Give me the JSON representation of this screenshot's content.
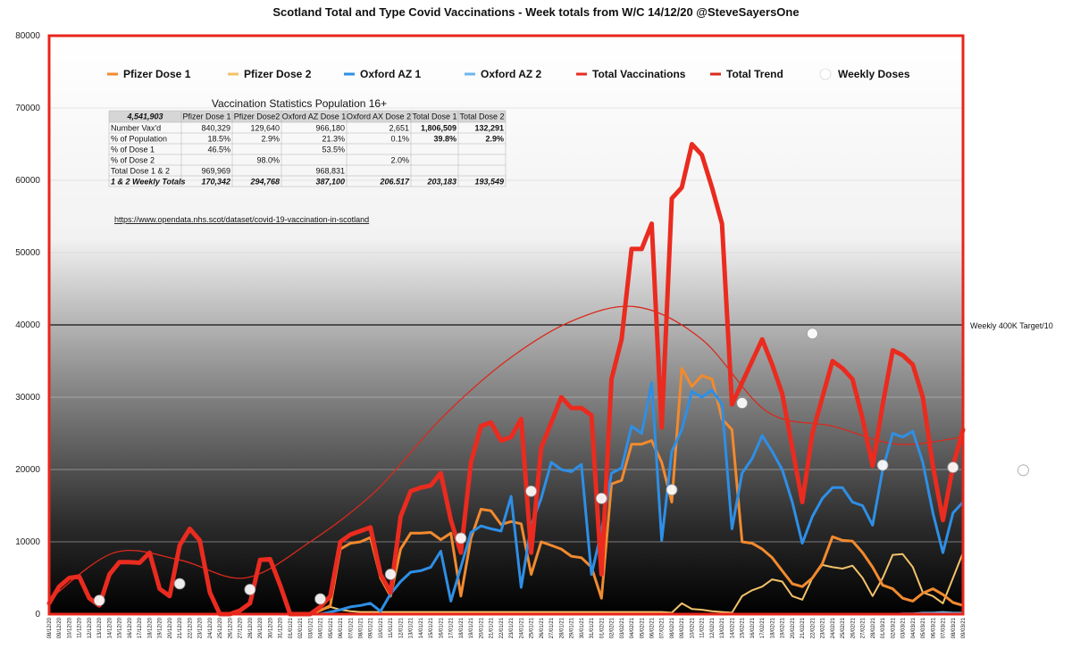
{
  "chart_data": {
    "type": "line",
    "title": "Scotland Total and Type Covid Vaccinations - Week totals from W/C 14/12/20  @SteveSayersOne",
    "ylim": [
      0,
      80000
    ],
    "yticks": [
      "0",
      "10000",
      "20000",
      "30000",
      "40000",
      "50000",
      "60000",
      "70000",
      "80000"
    ],
    "ytick_values": [
      0,
      10000,
      20000,
      30000,
      40000,
      50000,
      60000,
      70000,
      80000
    ],
    "x": [
      "08/12/20",
      "09/12/20",
      "10/12/20",
      "11/12/20",
      "12/12/20",
      "13/12/20",
      "14/12/20",
      "15/12/20",
      "16/12/20",
      "17/12/20",
      "18/12/20",
      "19/12/20",
      "20/12/20",
      "21/12/20",
      "22/12/20",
      "23/12/20",
      "24/12/20",
      "25/12/20",
      "26/12/20",
      "27/12/20",
      "28/12/20",
      "29/12/20",
      "30/12/20",
      "31/12/20",
      "01/01/21",
      "02/01/21",
      "03/01/21",
      "04/01/21",
      "05/01/21",
      "06/01/21",
      "07/01/21",
      "08/01/21",
      "09/01/21",
      "10/01/21",
      "11/01/21",
      "12/01/21",
      "13/01/21",
      "14/01/21",
      "15/01/21",
      "16/01/21",
      "17/01/21",
      "18/01/21",
      "19/01/21",
      "20/01/21",
      "21/01/21",
      "22/01/21",
      "23/01/21",
      "24/01/21",
      "25/01/21",
      "26/01/21",
      "27/01/21",
      "28/01/21",
      "29/01/21",
      "30/01/21",
      "31/01/21",
      "01/02/21",
      "02/02/21",
      "03/02/21",
      "04/02/21",
      "05/02/21",
      "06/02/21",
      "07/02/21",
      "08/02/21",
      "09/02/21",
      "10/02/21",
      "11/02/21",
      "12/02/21",
      "13/02/21",
      "14/02/21",
      "15/02/21",
      "16/02/21",
      "17/02/21",
      "18/02/21",
      "19/02/21",
      "20/02/21",
      "21/02/21",
      "22/02/21",
      "23/02/21",
      "24/02/21",
      "25/02/21",
      "26/02/21",
      "27/02/21",
      "28/02/21",
      "01/03/21",
      "02/03/21",
      "03/03/21",
      "04/03/21",
      "05/03/21",
      "06/03/21",
      "07/03/21",
      "08/03/21",
      "09/03/21"
    ],
    "series": [
      {
        "name": "Pfizer Dose 1",
        "color": "#f28a2e",
        "width": 3,
        "values": [
          1500,
          3800,
          5000,
          5200,
          2200,
          1200,
          5500,
          7200,
          7200,
          7100,
          8500,
          3500,
          2500,
          9500,
          11800,
          10200,
          3000,
          0,
          0,
          500,
          1500,
          7500,
          7600,
          4000,
          0,
          0,
          0,
          500,
          1200,
          9000,
          9800,
          10000,
          10600,
          5000,
          2500,
          9000,
          11200,
          11200,
          11300,
          10300,
          11200,
          2500,
          10500,
          14500,
          14300,
          12400,
          12800,
          12500,
          5500,
          10000,
          9500,
          9000,
          8000,
          7800,
          6500,
          2200,
          18000,
          18500,
          23500,
          23500,
          24000,
          21000,
          15500,
          34000,
          31500,
          33000,
          32500,
          27000,
          25500,
          10000,
          9800,
          9000,
          7800,
          6000,
          4200,
          3800,
          5000,
          7000,
          10700,
          10200,
          10100,
          8500,
          6500,
          4000,
          3500,
          2200,
          1800,
          2900,
          3500,
          2700,
          1600,
          1200
        ]
      },
      {
        "name": "Pfizer Dose 2",
        "color": "#f3c26a",
        "width": 2,
        "values": [
          0,
          0,
          0,
          0,
          0,
          0,
          0,
          0,
          0,
          0,
          0,
          0,
          0,
          0,
          0,
          0,
          0,
          0,
          0,
          0,
          0,
          0,
          0,
          0,
          0,
          0,
          0,
          500,
          1000,
          600,
          400,
          300,
          300,
          300,
          300,
          300,
          300,
          300,
          300,
          300,
          300,
          300,
          300,
          300,
          300,
          300,
          300,
          300,
          300,
          300,
          300,
          300,
          300,
          300,
          300,
          300,
          300,
          300,
          300,
          300,
          300,
          300,
          200,
          1500,
          700,
          600,
          400,
          300,
          200,
          2500,
          3300,
          3800,
          4800,
          4500,
          2500,
          2000,
          5000,
          6800,
          6500,
          6300,
          6700,
          5000,
          2500,
          5000,
          8200,
          8300,
          6500,
          3000,
          2500,
          1500,
          5000,
          8500
        ]
      },
      {
        "name": "Oxford AZ 1",
        "color": "#2e8fe6",
        "width": 3,
        "values": [
          0,
          0,
          0,
          0,
          0,
          0,
          0,
          0,
          0,
          0,
          0,
          0,
          0,
          0,
          0,
          0,
          0,
          0,
          0,
          0,
          0,
          0,
          0,
          0,
          0,
          0,
          0,
          0,
          300,
          600,
          1000,
          1200,
          1500,
          400,
          2800,
          4500,
          5800,
          6000,
          6500,
          8700,
          1800,
          6500,
          11300,
          12200,
          11800,
          11500,
          16300,
          3700,
          12300,
          16000,
          21000,
          20000,
          19700,
          20700,
          5500,
          11500,
          19500,
          20200,
          26000,
          25000,
          32000,
          10200,
          22500,
          25500,
          30800,
          30000,
          31000,
          29000,
          11800,
          19500,
          21500,
          24700,
          22500,
          20000,
          15500,
          9800,
          13500,
          16000,
          17500,
          17500,
          15500,
          15000,
          12300,
          20000,
          25000,
          24500,
          25300,
          21000,
          14000,
          8500,
          14000,
          15500
        ]
      },
      {
        "name": "Oxford AZ 2",
        "color": "#6ab8ee",
        "width": 2,
        "values": [
          0,
          0,
          0,
          0,
          0,
          0,
          0,
          0,
          0,
          0,
          0,
          0,
          0,
          0,
          0,
          0,
          0,
          0,
          0,
          0,
          0,
          0,
          0,
          0,
          0,
          0,
          0,
          0,
          0,
          0,
          0,
          0,
          0,
          0,
          0,
          0,
          0,
          0,
          0,
          0,
          0,
          0,
          0,
          0,
          0,
          0,
          0,
          0,
          0,
          0,
          0,
          0,
          0,
          0,
          0,
          0,
          0,
          0,
          0,
          0,
          0,
          0,
          0,
          0,
          0,
          0,
          0,
          0,
          0,
          0,
          0,
          0,
          0,
          0,
          0,
          0,
          0,
          0,
          0,
          0,
          0,
          0,
          0,
          0,
          0,
          100,
          100,
          200,
          200,
          300,
          200,
          200
        ]
      },
      {
        "name": "Total Vaccinations",
        "color": "#ea2b1f",
        "width": 5,
        "values": [
          1500,
          3800,
          5000,
          5200,
          2200,
          1200,
          5500,
          7200,
          7200,
          7100,
          8500,
          3500,
          2500,
          9500,
          11800,
          10200,
          3000,
          0,
          0,
          500,
          1500,
          7500,
          7600,
          4000,
          0,
          0,
          0,
          1000,
          2500,
          10000,
          11000,
          11500,
          12000,
          5500,
          3000,
          13500,
          17000,
          17500,
          17800,
          19500,
          13000,
          8500,
          21000,
          26000,
          26500,
          24000,
          24500,
          27000,
          8500,
          23000,
          26500,
          30000,
          28500,
          28500,
          27500,
          5500,
          32500,
          38000,
          50500,
          50500,
          54000,
          25800,
          57500,
          59000,
          65000,
          63500,
          59000,
          54000,
          29000,
          32000,
          35000,
          38000,
          34500,
          30500,
          23000,
          15500,
          25000,
          30000,
          35000,
          34000,
          32500,
          27000,
          20500,
          29000,
          36500,
          35800,
          34500,
          30000,
          20500,
          13000,
          20500,
          25500
        ]
      }
    ],
    "trend": {
      "name": "Total Trend",
      "color": "#d9291c",
      "values": [
        2000,
        8500,
        7500,
        5000,
        10000,
        17000,
        27000,
        35000,
        40500,
        42500,
        38000,
        28000,
        26000,
        23500,
        24500
      ]
    },
    "weekly_doses": {
      "name": "Weekly Doses",
      "values": [
        1900,
        4200,
        3400,
        2100,
        5500,
        10500,
        17000,
        16000,
        17200,
        29200,
        38800,
        20600,
        20300,
        19900
      ],
      "x_index": [
        5,
        13,
        20,
        27,
        34,
        41,
        48,
        55,
        62,
        69,
        76,
        83,
        90,
        97
      ]
    },
    "reference_line": {
      "value": 40000,
      "label": "Weekly 400K Target/10"
    },
    "legend_location": "top"
  },
  "table": {
    "title": "Vaccination Statistics Population 16+",
    "header": [
      "4,541,903",
      "Pfizer Dose 1",
      "Pfizer Dose2",
      "Oxford AZ Dose 1",
      "Oxford AX Dose 2",
      "Total Dose 1",
      "Total Dose 2"
    ],
    "rows": [
      [
        "Number Vax'd",
        "840,329",
        "129,640",
        "966,180",
        "2,651",
        "1,806,509",
        "132,291"
      ],
      [
        "% of Population",
        "18.5%",
        "2.9%",
        "21.3%",
        "0.1%",
        "39.8%",
        "2.9%"
      ],
      [
        "% of Dose 1",
        "46.5%",
        "",
        "53.5%",
        "",
        "",
        ""
      ],
      [
        "% of Dose 2",
        "",
        "98.0%",
        "",
        "2.0%",
        "",
        ""
      ],
      [
        "Total Dose 1 & 2",
        "969,969",
        "",
        "968,831",
        "",
        "",
        ""
      ],
      [
        "1 & 2 Weekly Totals",
        "170,342",
        "294,768",
        "387,100",
        "206.517",
        "203,183",
        "193,549"
      ]
    ],
    "url": "https://www.opendata.nhs.scot/dataset/covid-19-vaccination-in-scotland"
  }
}
